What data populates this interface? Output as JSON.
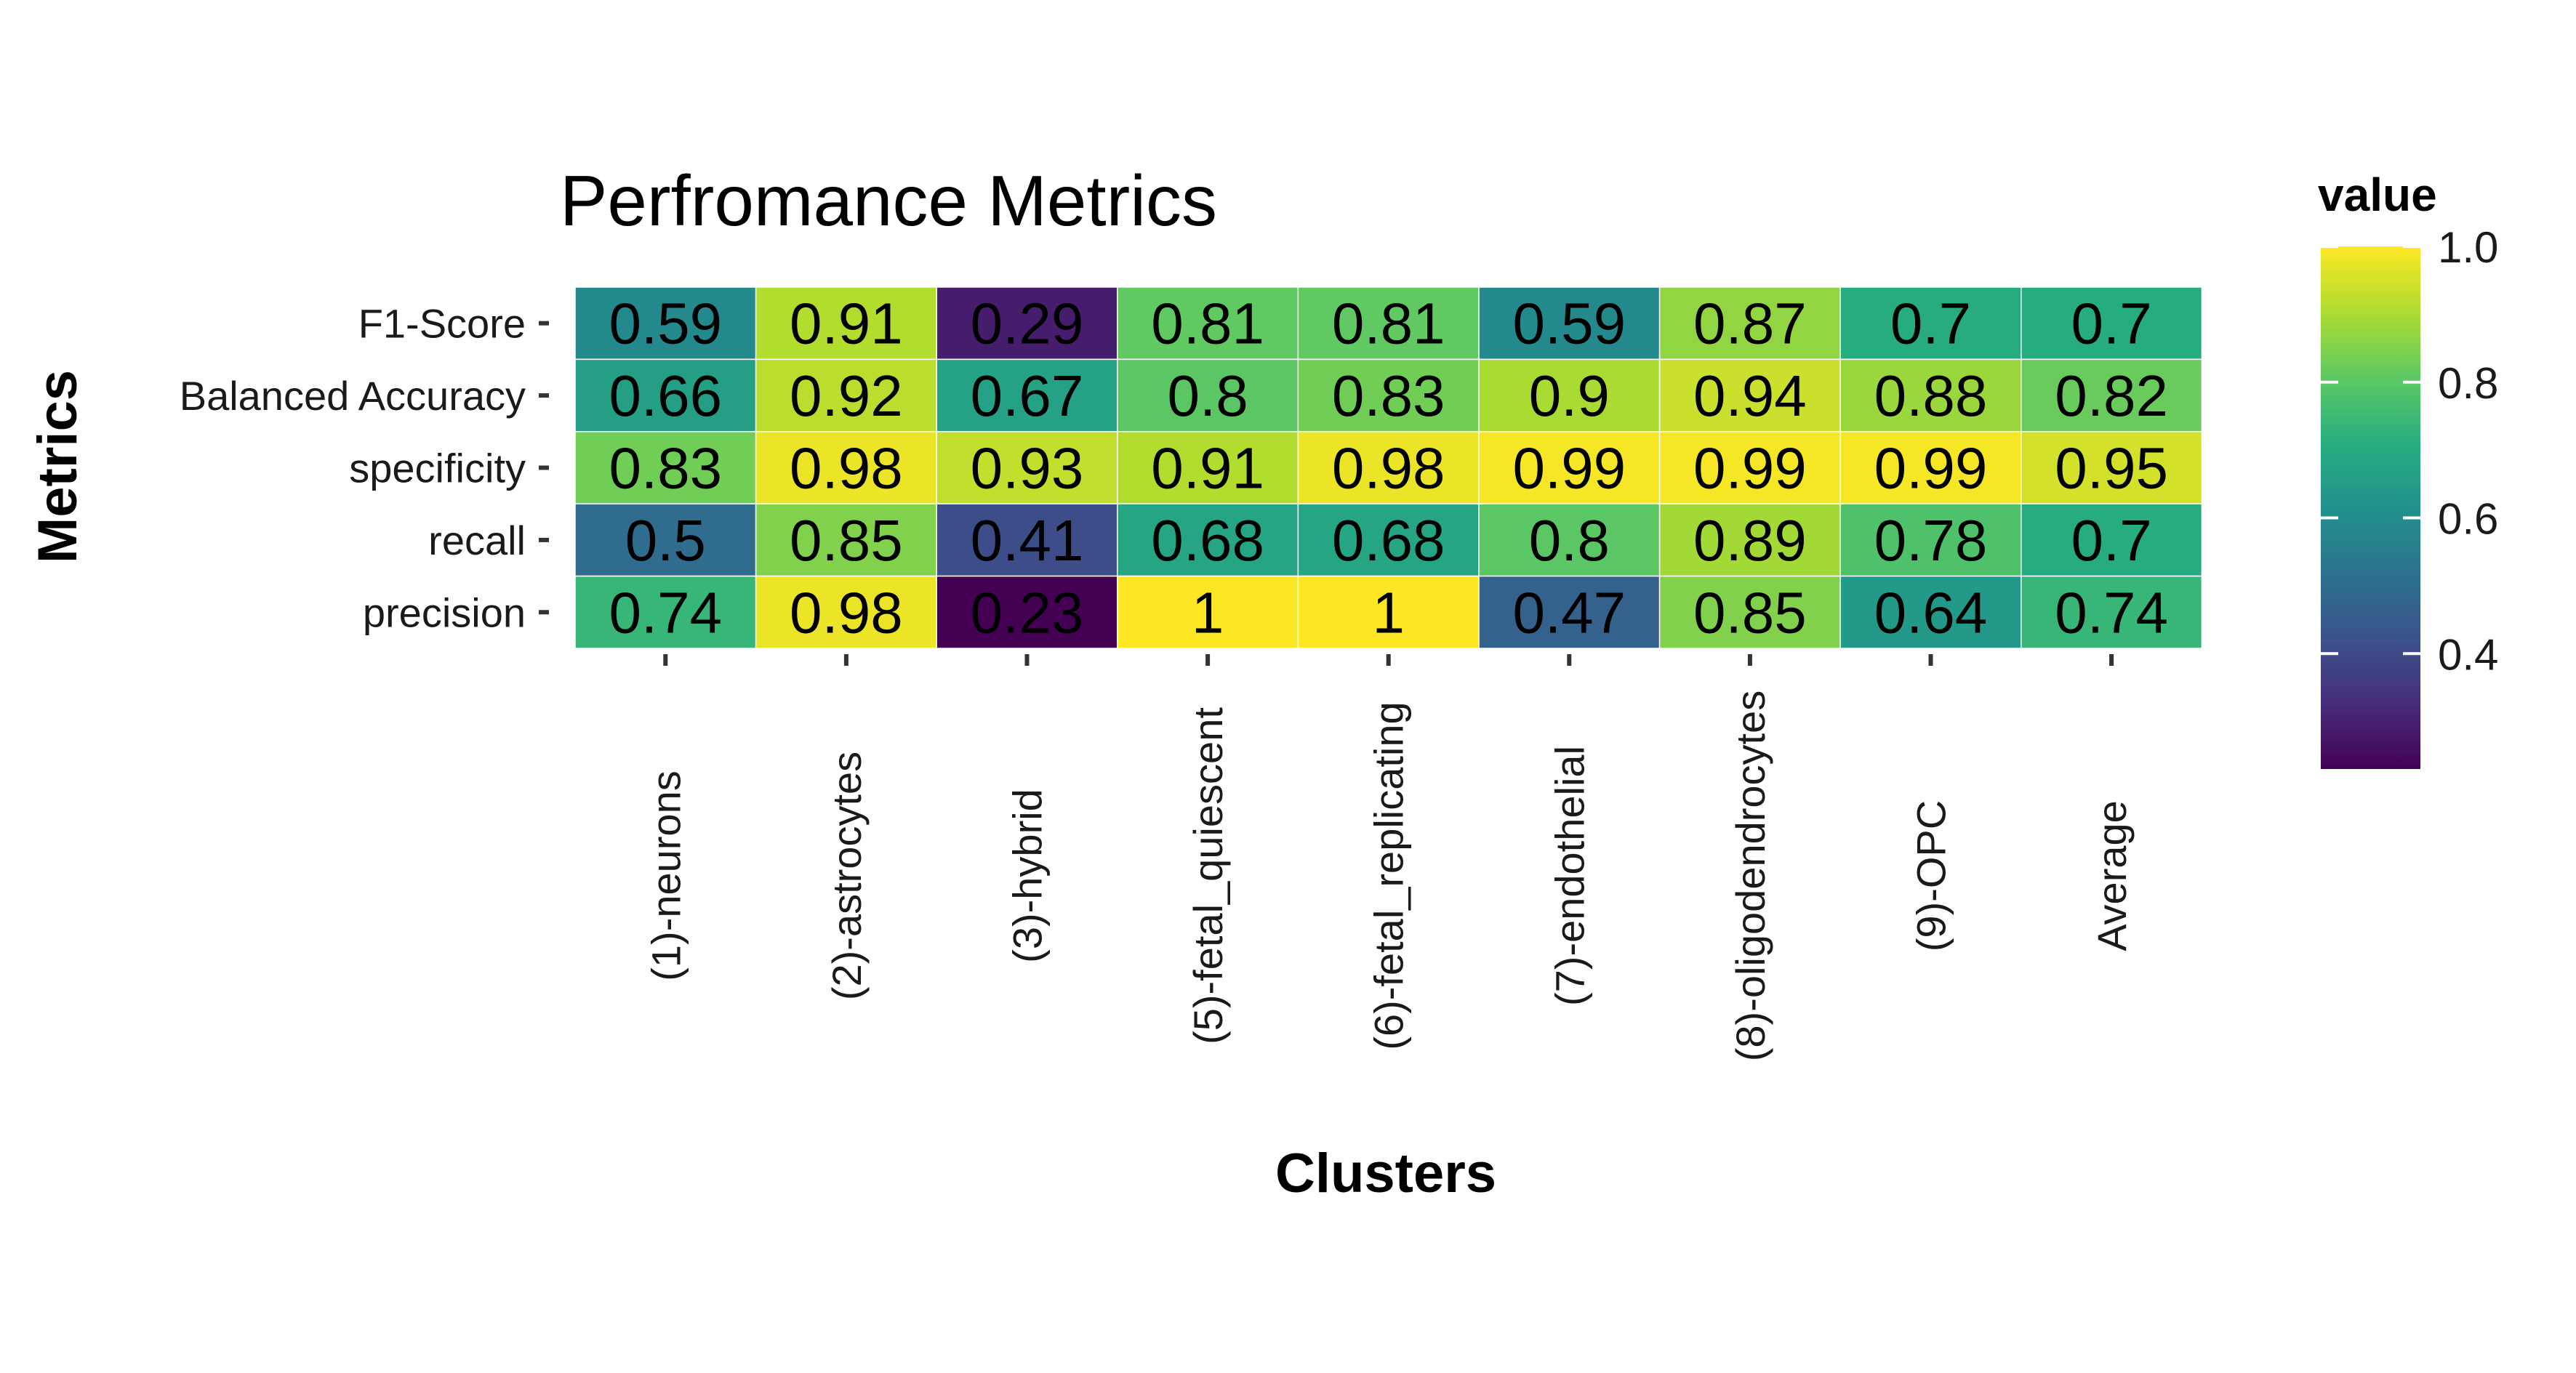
{
  "chart_data": {
    "type": "heatmap",
    "title": "Perfromance Metrics",
    "xlabel": "Clusters",
    "ylabel": "Metrics",
    "x_categories": [
      "(1)-neurons",
      "(2)-astrocytes",
      "(3)-hybrid",
      "(5)-fetal_quiescent",
      "(6)-fetal_replicating",
      "(7)-endothelial",
      "(8)-oligodendrocytes",
      "(9)-OPC",
      "Average"
    ],
    "y_categories": [
      "F1-Score",
      "Balanced Accuracy",
      "specificity",
      "recall",
      "precision"
    ],
    "values": [
      [
        0.59,
        0.91,
        0.29,
        0.81,
        0.81,
        0.59,
        0.87,
        0.7,
        0.7
      ],
      [
        0.66,
        0.92,
        0.67,
        0.8,
        0.83,
        0.9,
        0.94,
        0.88,
        0.82
      ],
      [
        0.83,
        0.98,
        0.93,
        0.91,
        0.98,
        0.99,
        0.99,
        0.99,
        0.95
      ],
      [
        0.5,
        0.85,
        0.41,
        0.68,
        0.68,
        0.8,
        0.89,
        0.78,
        0.7
      ],
      [
        0.74,
        0.98,
        0.23,
        1,
        1,
        0.47,
        0.85,
        0.64,
        0.74
      ]
    ],
    "legend": {
      "title": "value",
      "ticks": [
        "1.0",
        "0.8",
        "0.6",
        "0.4"
      ],
      "tick_values": [
        1.0,
        0.8,
        0.6,
        0.4
      ],
      "min": 0.23,
      "max": 1.0,
      "colormap": "viridis",
      "placement": "right"
    },
    "grid": false
  }
}
